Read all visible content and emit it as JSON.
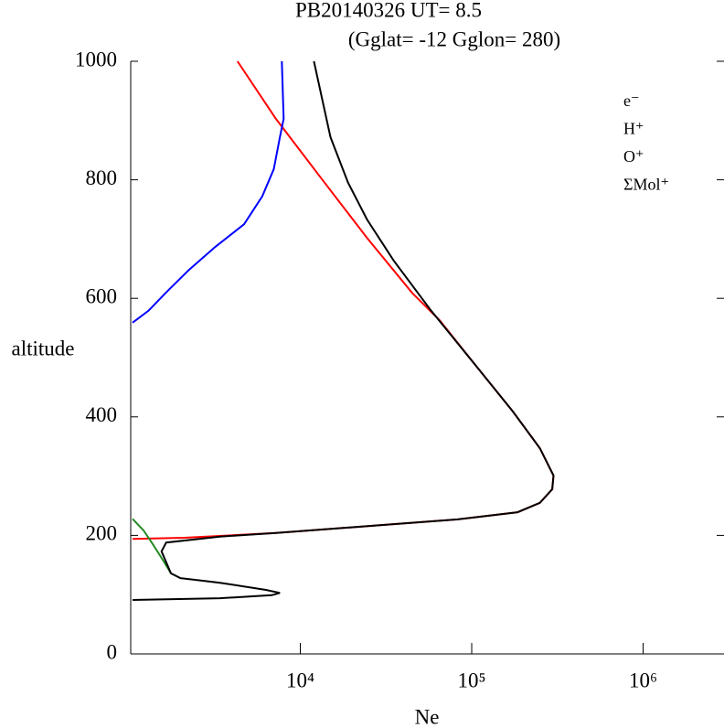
{
  "chart_data": {
    "type": "line",
    "title": "PB20140326   UT=  8.5",
    "subtitle": "(Gglat= -12   Gglon=  280)",
    "x_label": "Ne",
    "y_label": "altitude",
    "xscale": "log",
    "xlim": [
      1000,
      3000000
    ],
    "xticks": [
      {
        "value": 10000,
        "label": "10⁴"
      },
      {
        "value": 100000,
        "label": "10⁵"
      },
      {
        "value": 1000000,
        "label": "10⁶"
      }
    ],
    "ylim": [
      0,
      1000
    ],
    "yticks": [
      0,
      200,
      400,
      600,
      800,
      1000
    ],
    "legend": "upper right",
    "series": [
      {
        "name": "O⁺",
        "color": "#ff0000",
        "x": [
          4300,
          7200,
          13300,
          24500,
          45000,
          65000,
          106000,
          174000,
          250000,
          300000,
          295000,
          250000,
          185000,
          83000,
          35000,
          7200,
          2100,
          1050
        ],
        "values": [
          1000,
          903,
          802,
          702,
          609,
          563,
          486,
          409,
          347,
          301,
          278,
          255,
          239,
          227,
          219,
          204,
          196,
          194
        ]
      },
      {
        "name": "H⁺",
        "color": "#0000ff",
        "x": [
          7800,
          8000,
          7600,
          7000,
          6000,
          4700,
          3200,
          2240,
          1650,
          1300,
          1050
        ],
        "values": [
          1000,
          903,
          872,
          818,
          772,
          725,
          687,
          648,
          610,
          579,
          559
        ]
      },
      {
        "name": "ΣMol⁺",
        "color": "#228b22",
        "x": [
          1050,
          1220,
          1380,
          1550,
          1760
        ],
        "values": [
          228,
          208,
          185,
          162,
          136
        ]
      },
      {
        "name": "e⁻",
        "color": "#000000",
        "x": [
          12000,
          15000,
          19000,
          24500,
          35000,
          58000,
          106000,
          174000,
          250000,
          300000,
          295000,
          250000,
          185000,
          83000,
          35000,
          7200,
          3400,
          1650,
          1550,
          1760,
          2000,
          3400,
          6300,
          7600,
          6800,
          3400,
          1050
        ],
        "values": [
          1000,
          872,
          795,
          733,
          664,
          579,
          486,
          409,
          347,
          301,
          278,
          255,
          239,
          227,
          219,
          204,
          198,
          188,
          173,
          136,
          128,
          120,
          108,
          103,
          99,
          94,
          91
        ]
      }
    ]
  }
}
